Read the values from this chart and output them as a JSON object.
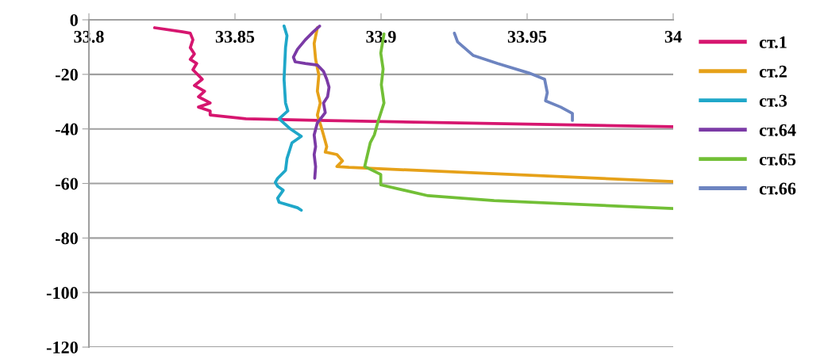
{
  "chart_data": {
    "type": "line",
    "xlim": [
      33.8,
      34
    ],
    "xticks": [
      33.8,
      33.85,
      33.9,
      33.95,
      34
    ],
    "ylim": [
      -120,
      0
    ],
    "yticks": [
      -120,
      -100,
      -80,
      -60,
      -40,
      -20,
      0
    ],
    "grid": "y",
    "legend": "right",
    "marker": "none",
    "line_style": "solid",
    "series": [
      {
        "name": "ст.1",
        "color": "#d6166f",
        "x": [
          33.8225,
          33.832,
          33.8347,
          33.8356,
          33.8347,
          33.8361,
          33.8347,
          33.8369,
          33.8356,
          33.8388,
          33.8361,
          33.8396,
          33.8375,
          33.8415,
          33.8375,
          33.8415,
          33.8415,
          33.8537,
          33.8782,
          34
        ],
        "values": [
          -2.9,
          -4.4,
          -4.9,
          -7.3,
          -10.2,
          -12.5,
          -14.5,
          -16,
          -18.3,
          -21.8,
          -24.1,
          -26.2,
          -28.2,
          -30.5,
          -32,
          -33.4,
          -34.9,
          -36.3,
          -36.9,
          -39.2
        ]
      },
      {
        "name": "ст.2",
        "color": "#e6a119",
        "x": [
          33.8782,
          33.8771,
          33.8776,
          33.8787,
          33.8782,
          33.8792,
          33.8782,
          33.8795,
          33.8803,
          33.8814,
          33.8809,
          33.8849,
          33.8868,
          33.8849,
          33.889,
          34
        ],
        "values": [
          -2.9,
          -8.7,
          -14.5,
          -20.3,
          -26.2,
          -30.5,
          -34.9,
          -39.2,
          -42.2,
          -46.5,
          -48.5,
          -49.4,
          -51.7,
          -53.8,
          -54.1,
          -59.3
        ]
      },
      {
        "name": "ст.3",
        "color": "#1fa7c9",
        "x": [
          33.8668,
          33.8678,
          33.8673,
          33.8668,
          33.8673,
          33.8681,
          33.8651,
          33.8687,
          33.8727,
          33.8695,
          33.8678,
          33.8673,
          33.8646,
          33.8638,
          33.8646,
          33.8665,
          33.8646,
          33.8651,
          33.8714,
          33.8727
        ],
        "values": [
          -2.3,
          -5.8,
          -10.2,
          -21.8,
          -30.5,
          -33.4,
          -36.3,
          -39.8,
          -42.7,
          -45.1,
          -50.9,
          -55.2,
          -58.1,
          -59.6,
          -61,
          -62.5,
          -65.4,
          -66.9,
          -68.9,
          -69.8
        ]
      },
      {
        "name": "ст.64",
        "color": "#7b3aa6",
        "x": [
          33.879,
          33.8768,
          33.8741,
          33.8714,
          33.87,
          33.8706,
          33.8741,
          33.8782,
          33.8803,
          33.8814,
          33.8822,
          33.8817,
          33.8803,
          33.8809,
          33.8782,
          33.8771,
          33.8776,
          33.8771,
          33.8776,
          33.8773
        ],
        "values": [
          -2.3,
          -4.4,
          -7.3,
          -10.8,
          -13.7,
          -15.4,
          -16,
          -16.6,
          -18.9,
          -21.8,
          -24.7,
          -28.2,
          -30.5,
          -34,
          -37.8,
          -42.2,
          -46.5,
          -49.4,
          -53.8,
          -58.1
        ]
      },
      {
        "name": "ст.65",
        "color": "#72bf36",
        "x": [
          33.901,
          33.8999,
          33.9007,
          33.9001,
          33.901,
          33.899,
          33.8977,
          33.8963,
          33.8944,
          33.8999,
          33.8999,
          33.9161,
          33.9387,
          34
        ],
        "values": [
          -5.2,
          -12.2,
          -18,
          -23.8,
          -30.5,
          -37.2,
          -42.2,
          -45.1,
          -53.8,
          -56.7,
          -60.5,
          -64.5,
          -66.3,
          -69.2
        ]
      },
      {
        "name": "ст.66",
        "color": "#6d84c0",
        "x": [
          33.9251,
          33.9262,
          33.9316,
          33.9398,
          33.9506,
          33.956,
          33.9569,
          33.9563,
          33.9615,
          33.9655,
          33.9655
        ],
        "values": [
          -4.9,
          -8.1,
          -13.1,
          -16,
          -19.5,
          -21.8,
          -26.7,
          -29.7,
          -32,
          -34.3,
          -36.9
        ]
      }
    ]
  }
}
